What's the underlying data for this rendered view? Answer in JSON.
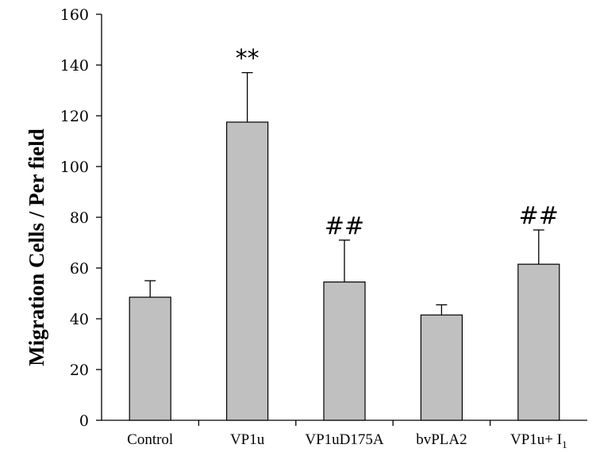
{
  "chart_data": {
    "type": "bar",
    "categories": [
      "Control",
      "VP1u",
      "VP1uD175A",
      "bvPLA2",
      "VP1u+ I"
    ],
    "values": [
      48.5,
      117.5,
      54.5,
      41.5,
      61.5
    ],
    "errors": [
      6.5,
      19.5,
      16.5,
      4,
      13.5
    ],
    "annotations": [
      "",
      "**",
      "##",
      "",
      "##"
    ],
    "category_subscripts": [
      "",
      "",
      "",
      "",
      "1"
    ],
    "ylabel": "Migration Cells / Per field",
    "xlabel": "",
    "ylim": [
      0,
      160
    ],
    "yticks": [
      0,
      20,
      40,
      60,
      80,
      100,
      120,
      140,
      160
    ],
    "bar_color": "#c0c0c0",
    "grid": false,
    "legend": "none"
  }
}
